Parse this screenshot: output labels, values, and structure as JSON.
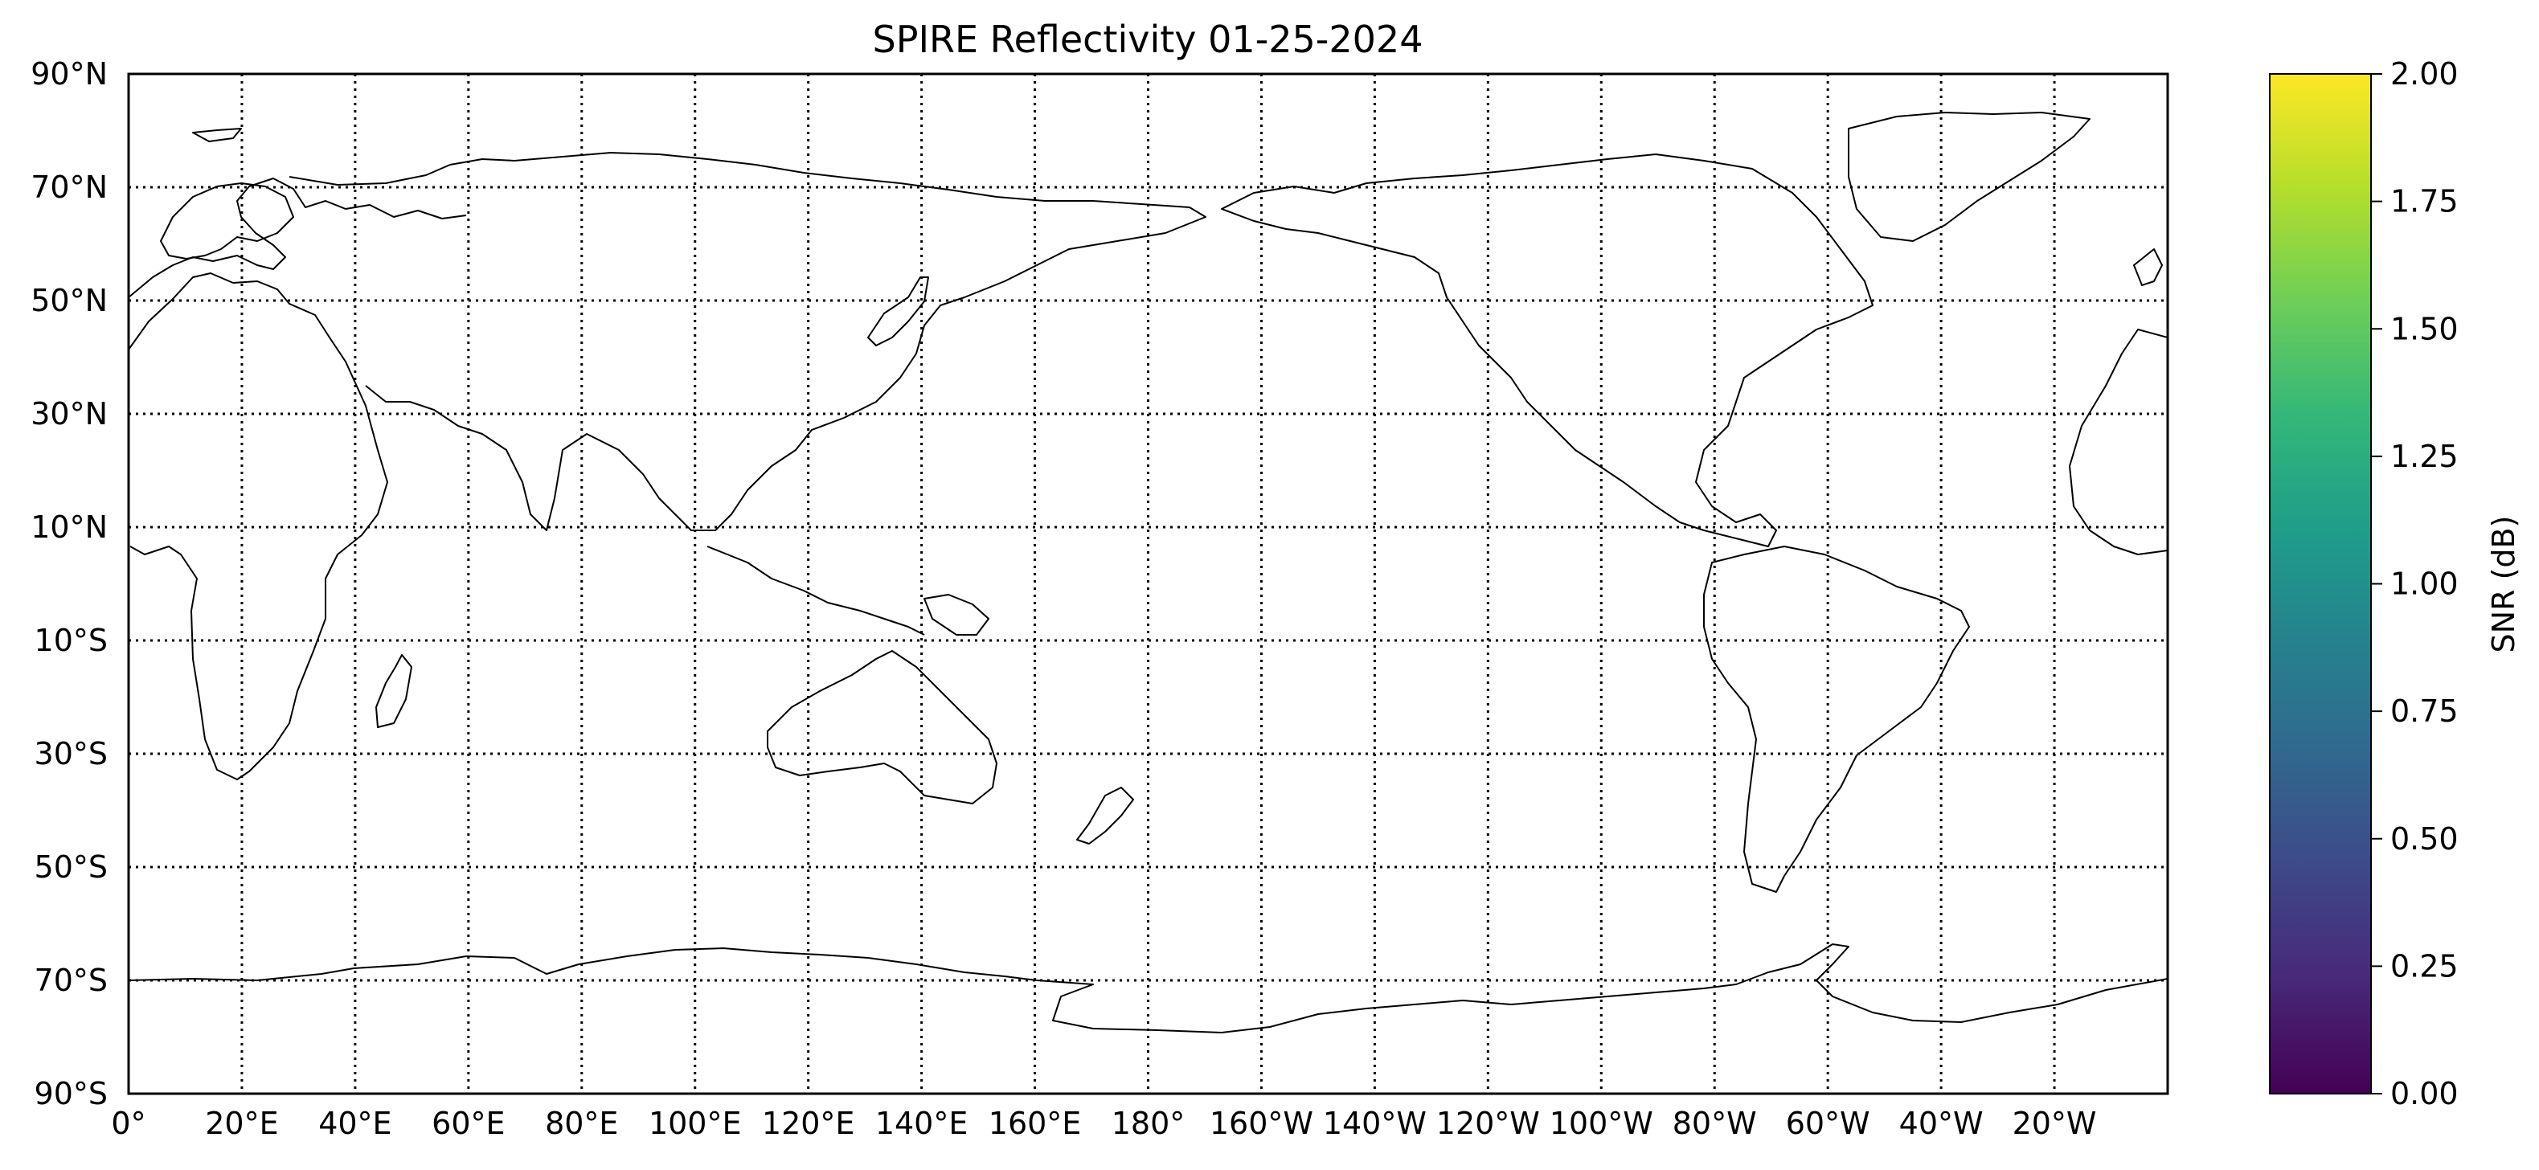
{
  "chart_data": {
    "type": "map",
    "title": "SPIRE Reflectivity 01-25-2024",
    "projection": "PlateCarree",
    "central_longitude": 180,
    "lon_range": [
      0,
      360
    ],
    "lat_range": [
      -90,
      90
    ],
    "grid": true,
    "lat_ticks": [
      {
        "value": 90,
        "label": "90°N"
      },
      {
        "value": 70,
        "label": "70°N"
      },
      {
        "value": 50,
        "label": "50°N"
      },
      {
        "value": 30,
        "label": "30°N"
      },
      {
        "value": 10,
        "label": "10°N"
      },
      {
        "value": -10,
        "label": "10°S"
      },
      {
        "value": -30,
        "label": "30°S"
      },
      {
        "value": -50,
        "label": "50°S"
      },
      {
        "value": -70,
        "label": "70°S"
      },
      {
        "value": -90,
        "label": "90°S"
      }
    ],
    "lon_ticks": [
      {
        "value": 0,
        "label": "0°"
      },
      {
        "value": 20,
        "label": "20°E"
      },
      {
        "value": 40,
        "label": "40°E"
      },
      {
        "value": 60,
        "label": "60°E"
      },
      {
        "value": 80,
        "label": "80°E"
      },
      {
        "value": 100,
        "label": "100°E"
      },
      {
        "value": 120,
        "label": "120°E"
      },
      {
        "value": 140,
        "label": "140°E"
      },
      {
        "value": 160,
        "label": "160°E"
      },
      {
        "value": 180,
        "label": "180°"
      },
      {
        "value": 200,
        "label": "160°W"
      },
      {
        "value": 220,
        "label": "140°W"
      },
      {
        "value": 240,
        "label": "120°W"
      },
      {
        "value": 260,
        "label": "100°W"
      },
      {
        "value": 280,
        "label": "80°W"
      },
      {
        "value": 300,
        "label": "60°W"
      },
      {
        "value": 320,
        "label": "40°W"
      },
      {
        "value": 340,
        "label": "20°W"
      }
    ],
    "colorbar": {
      "label": "SNR (dB)",
      "colormap": "viridis",
      "range": [
        0,
        2
      ],
      "ticks": [
        {
          "value": 0.0,
          "label": "0.00"
        },
        {
          "value": 0.25,
          "label": "0.25"
        },
        {
          "value": 0.5,
          "label": "0.50"
        },
        {
          "value": 0.75,
          "label": "0.75"
        },
        {
          "value": 1.0,
          "label": "1.00"
        },
        {
          "value": 1.25,
          "label": "1.25"
        },
        {
          "value": 1.5,
          "label": "1.50"
        },
        {
          "value": 1.75,
          "label": "1.75"
        },
        {
          "value": 2.0,
          "label": "2.00"
        }
      ],
      "colors": [
        "#440154",
        "#482878",
        "#3e4989",
        "#31688e",
        "#26828e",
        "#1f9e89",
        "#35b779",
        "#6ece58",
        "#b5de2b",
        "#fde725"
      ]
    }
  }
}
